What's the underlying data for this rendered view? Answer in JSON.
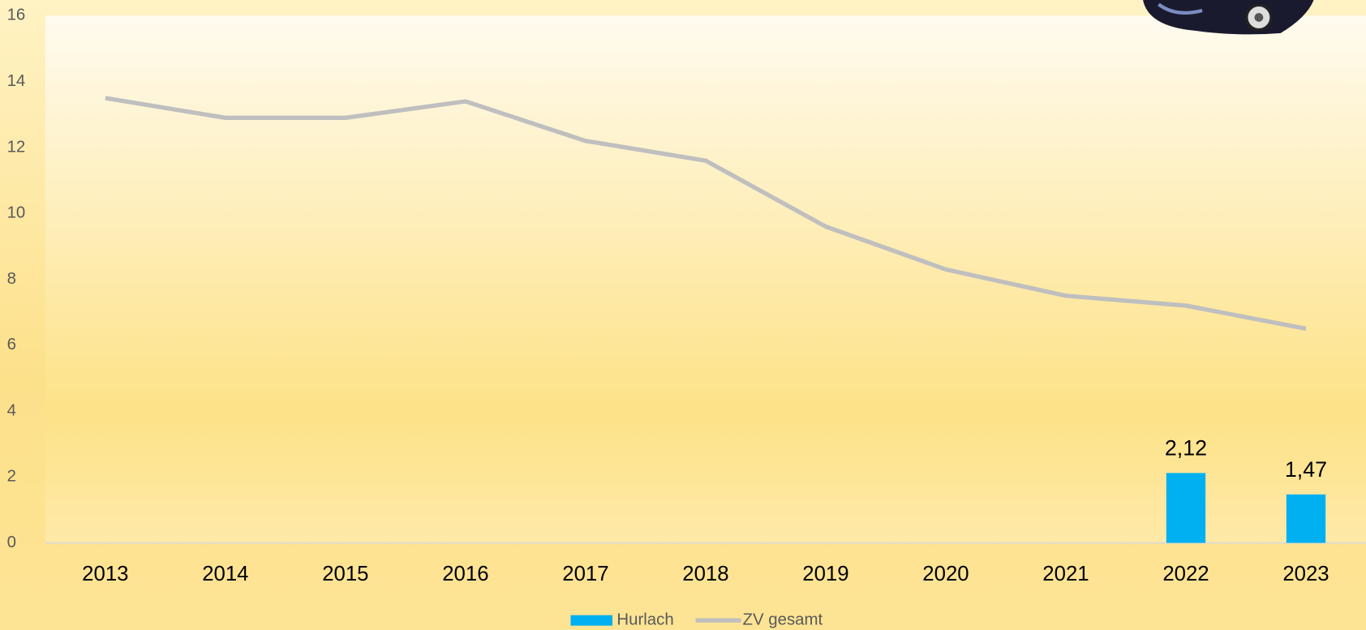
{
  "chart_data": {
    "type": "bar-line",
    "categories": [
      "2013",
      "2014",
      "2015",
      "2016",
      "2017",
      "2018",
      "2019",
      "2020",
      "2021",
      "2022",
      "2023"
    ],
    "series": [
      {
        "name": "Hurlach",
        "type": "bar",
        "color": "#00b0f0",
        "values": [
          null,
          null,
          null,
          null,
          null,
          null,
          null,
          null,
          null,
          2.12,
          1.47
        ],
        "value_labels": [
          null,
          null,
          null,
          null,
          null,
          null,
          null,
          null,
          null,
          "2,12",
          "1,47"
        ]
      },
      {
        "name": "ZV gesamt",
        "type": "line",
        "color": "#bfbfbf",
        "values": [
          13.5,
          12.9,
          12.9,
          13.4,
          12.2,
          11.6,
          9.6,
          8.3,
          7.5,
          7.2,
          6.5
        ]
      }
    ],
    "ylim": [
      0,
      16
    ],
    "yticks": [
      0,
      2,
      4,
      6,
      8,
      10,
      12,
      14,
      16
    ],
    "legend": "bottom"
  }
}
